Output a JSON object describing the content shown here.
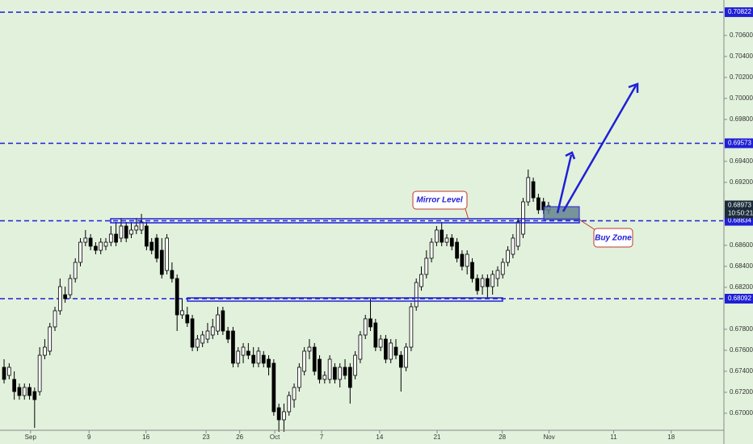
{
  "chart_data": {
    "type": "candlestick",
    "open": [
      0.67438,
      0.67361,
      0.67323,
      0.67246,
      0.67169,
      0.67246,
      0.67207,
      0.67207,
      0.67553,
      0.67592,
      0.67823,
      0.67977,
      0.6813,
      0.6813,
      0.68284,
      0.68438,
      0.6863,
      0.68669,
      0.68592,
      0.68553,
      0.68592,
      0.6863,
      0.68707,
      0.68669,
      0.68784,
      0.68707,
      0.68746,
      0.68746,
      0.68784,
      0.6863,
      0.68669,
      0.68553,
      0.68361,
      0.68361,
      0.68284,
      0.67938,
      0.67938,
      0.679,
      0.6763,
      0.67669,
      0.67707,
      0.67746,
      0.67784,
      0.67977,
      0.67784,
      0.67784,
      0.67477,
      0.67553,
      0.67592,
      0.67553,
      0.67477,
      0.67553,
      0.67515,
      0.67477,
      0.67053,
      0.66938,
      0.67015,
      0.6713,
      0.67246,
      0.674,
      0.67592,
      0.6763,
      0.67515,
      0.67323,
      0.67323,
      0.67438,
      0.67323,
      0.67438,
      0.67438,
      0.67361,
      0.67515,
      0.67746,
      0.679,
      0.67861,
      0.6763,
      0.67707,
      0.67515,
      0.6763,
      0.67553,
      0.67438,
      0.6763,
      0.68015,
      0.68207,
      0.68323,
      0.68477,
      0.6863,
      0.68746,
      0.6863,
      0.68669,
      0.6863,
      0.68515,
      0.684,
      0.68438,
      0.68284,
      0.68207,
      0.68284,
      0.68207,
      0.68284,
      0.68323,
      0.68438,
      0.68515,
      0.68592,
      0.68707,
      0.69015,
      0.69207,
      0.69053,
      0.69015,
      0.68938
    ],
    "high": [
      0.67515,
      0.67477,
      0.674,
      0.67284,
      0.67284,
      0.67284,
      0.67246,
      0.6763,
      0.67707,
      0.67861,
      0.68015,
      0.68284,
      0.68207,
      0.68323,
      0.68477,
      0.68669,
      0.68746,
      0.68707,
      0.6863,
      0.68669,
      0.68669,
      0.68784,
      0.68823,
      0.68861,
      0.68823,
      0.68823,
      0.68861,
      0.689,
      0.68823,
      0.68669,
      0.68707,
      0.68669,
      0.68707,
      0.68438,
      0.68323,
      0.68092,
      0.68015,
      0.67938,
      0.67746,
      0.67784,
      0.67861,
      0.679,
      0.68015,
      0.68015,
      0.67823,
      0.67823,
      0.6763,
      0.67669,
      0.67669,
      0.6763,
      0.6763,
      0.67592,
      0.67553,
      0.67515,
      0.67092,
      0.67092,
      0.67207,
      0.67284,
      0.67477,
      0.6763,
      0.67707,
      0.67669,
      0.67553,
      0.674,
      0.67553,
      0.67477,
      0.67477,
      0.67515,
      0.67477,
      0.67592,
      0.67784,
      0.67938,
      0.68092,
      0.679,
      0.67746,
      0.67746,
      0.67707,
      0.67707,
      0.67592,
      0.67669,
      0.68053,
      0.68284,
      0.684,
      0.68553,
      0.68669,
      0.68784,
      0.68823,
      0.68707,
      0.68707,
      0.68669,
      0.68553,
      0.68553,
      0.68477,
      0.68323,
      0.68323,
      0.68323,
      0.68361,
      0.684,
      0.68477,
      0.68592,
      0.68707,
      0.68861,
      0.69053,
      0.69323,
      0.69246,
      0.69092,
      0.69053,
      0.69015
    ],
    "low": [
      0.67284,
      0.67323,
      0.6713,
      0.6713,
      0.6713,
      0.6713,
      0.66861,
      0.67169,
      0.67515,
      0.67553,
      0.67784,
      0.67938,
      0.68053,
      0.68092,
      0.68246,
      0.684,
      0.68592,
      0.68553,
      0.68515,
      0.68515,
      0.68553,
      0.68592,
      0.68592,
      0.6863,
      0.6863,
      0.68669,
      0.68707,
      0.68707,
      0.68553,
      0.68515,
      0.68438,
      0.68284,
      0.68323,
      0.68246,
      0.67784,
      0.679,
      0.67823,
      0.67592,
      0.67592,
      0.6763,
      0.67669,
      0.67707,
      0.67746,
      0.67746,
      0.67669,
      0.67438,
      0.67438,
      0.67477,
      0.67515,
      0.67438,
      0.67438,
      0.67438,
      0.67361,
      0.66977,
      0.66823,
      0.66823,
      0.66977,
      0.67053,
      0.67207,
      0.67361,
      0.67515,
      0.67361,
      0.67284,
      0.67284,
      0.67284,
      0.67284,
      0.67246,
      0.67323,
      0.67092,
      0.67323,
      0.67477,
      0.67707,
      0.67784,
      0.67592,
      0.67592,
      0.67477,
      0.67477,
      0.67515,
      0.67207,
      0.674,
      0.67592,
      0.67977,
      0.68169,
      0.68284,
      0.68438,
      0.68592,
      0.68592,
      0.68592,
      0.68553,
      0.68438,
      0.68361,
      0.68323,
      0.68246,
      0.6813,
      0.6813,
      0.68092,
      0.6813,
      0.68207,
      0.68284,
      0.684,
      0.68477,
      0.68553,
      0.68669,
      0.68977,
      0.69015,
      0.689,
      0.689,
      0.689
    ],
    "close": [
      0.67323,
      0.67438,
      0.67207,
      0.67169,
      0.67246,
      0.67169,
      0.6713,
      0.67553,
      0.6763,
      0.67823,
      0.67977,
      0.68207,
      0.68092,
      0.68284,
      0.68438,
      0.6863,
      0.68669,
      0.68592,
      0.68553,
      0.6863,
      0.6863,
      0.68707,
      0.6863,
      0.68784,
      0.68669,
      0.68746,
      0.68784,
      0.68823,
      0.68592,
      0.68553,
      0.68477,
      0.68323,
      0.68669,
      0.68284,
      0.67938,
      0.67977,
      0.67861,
      0.6763,
      0.67707,
      0.67746,
      0.67784,
      0.67823,
      0.67938,
      0.67784,
      0.67707,
      0.67477,
      0.67592,
      0.6763,
      0.67553,
      0.67477,
      0.67592,
      0.67477,
      0.67438,
      0.67015,
      0.66938,
      0.67015,
      0.67169,
      0.67246,
      0.67438,
      0.67592,
      0.6763,
      0.674,
      0.67323,
      0.67361,
      0.67515,
      0.67323,
      0.67438,
      0.67361,
      0.67246,
      0.67553,
      0.67746,
      0.679,
      0.67823,
      0.6763,
      0.67707,
      0.67515,
      0.67669,
      0.67553,
      0.67438,
      0.6763,
      0.68015,
      0.68246,
      0.68323,
      0.68477,
      0.6863,
      0.68746,
      0.6863,
      0.68669,
      0.68592,
      0.68477,
      0.684,
      0.68515,
      0.68284,
      0.68169,
      0.68284,
      0.68207,
      0.68323,
      0.68361,
      0.68438,
      0.68553,
      0.68669,
      0.68823,
      0.69015,
      0.69246,
      0.69053,
      0.68938,
      0.68938,
      0.68977
    ],
    "up_color": "#ffffff",
    "down_color": "#000000",
    "level_color": "#1f1fd6",
    "xlim": [
      -0.8,
      141.3
    ],
    "xticks": [
      {
        "value": 5.2,
        "label": "Sep"
      },
      {
        "value": 16.7,
        "label": "9"
      },
      {
        "value": 27.9,
        "label": "16"
      },
      {
        "value": 39.7,
        "label": "23"
      },
      {
        "value": 46.3,
        "label": "26"
      },
      {
        "value": 53.2,
        "label": "Oct"
      },
      {
        "value": 62.4,
        "label": "7"
      },
      {
        "value": 73.8,
        "label": "14"
      },
      {
        "value": 85.1,
        "label": "21"
      },
      {
        "value": 97.9,
        "label": "28"
      },
      {
        "value": 107.1,
        "label": "Nov"
      },
      {
        "value": 119.8,
        "label": "11"
      },
      {
        "value": 131.1,
        "label": "18"
      }
    ],
    "ylim": [
      0.66838,
      0.70938
    ],
    "yticks": [
      {
        "value": 0.706,
        "label": "0.70600"
      },
      {
        "value": 0.704,
        "label": "0.70400"
      },
      {
        "value": 0.702,
        "label": "0.70200"
      },
      {
        "value": 0.7,
        "label": "0.70000"
      },
      {
        "value": 0.698,
        "label": "0.69800"
      },
      {
        "value": 0.694,
        "label": "0.69400"
      },
      {
        "value": 0.692,
        "label": "0.69200"
      },
      {
        "value": 0.686,
        "label": "0.68600"
      },
      {
        "value": 0.684,
        "label": "0.68400"
      },
      {
        "value": 0.682,
        "label": "0.68200"
      },
      {
        "value": 0.678,
        "label": "0.67800"
      },
      {
        "value": 0.676,
        "label": "0.67600"
      },
      {
        "value": 0.674,
        "label": "0.67400"
      },
      {
        "value": 0.672,
        "label": "0.67200"
      },
      {
        "value": 0.67,
        "label": "0.67000"
      }
    ],
    "grid": false,
    "levels": [
      {
        "value": 0.70822,
        "label": "0.70822"
      },
      {
        "value": 0.69573,
        "label": "0.69573"
      },
      {
        "value": 0.68834,
        "label": "0.68834"
      },
      {
        "value": 0.68092,
        "label": "0.68092"
      }
    ],
    "last_price": {
      "value": 0.68973,
      "label": "0.68973"
    },
    "countdown": "10:50:21",
    "annotations": [
      "Mirror Level",
      "Buy Zone"
    ]
  }
}
